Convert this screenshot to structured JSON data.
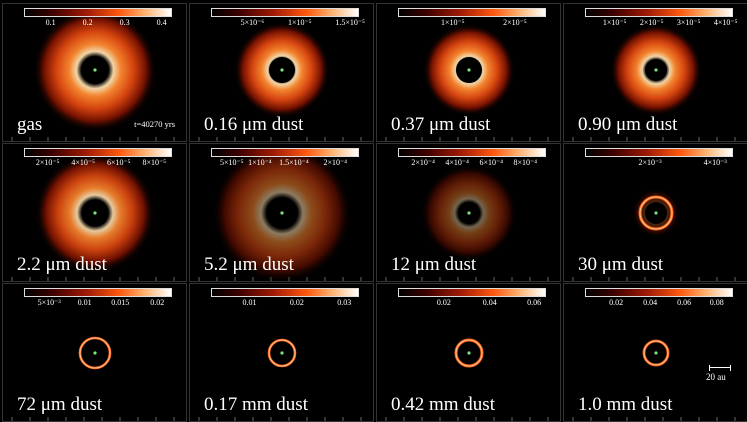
{
  "timestamp": "t=40270 yrs",
  "scale_label": "20 au",
  "panels": [
    {
      "label": "gas",
      "ticks": [
        "0.1",
        "0.2",
        "0.3",
        "0.4"
      ]
    },
    {
      "label": "0.16 μm dust",
      "ticks": [
        "5×10⁻⁶",
        "1×10⁻⁵",
        "1.5×10⁻⁵"
      ]
    },
    {
      "label": "0.37 μm dust",
      "ticks": [
        "1×10⁻⁵",
        "2×10⁻⁵"
      ]
    },
    {
      "label": "0.90 μm dust",
      "ticks": [
        "1×10⁻⁵",
        "2×10⁻⁵",
        "3×10⁻⁵",
        "4×10⁻⁵"
      ]
    },
    {
      "label": "2.2 μm dust",
      "ticks": [
        "2×10⁻⁵",
        "4×10⁻⁵",
        "6×10⁻⁵",
        "8×10⁻⁵"
      ]
    },
    {
      "label": "5.2 μm dust",
      "ticks": [
        "5×10⁻⁵",
        "1×10⁻⁴",
        "1.5×10⁻⁴",
        "2×10⁻⁴"
      ]
    },
    {
      "label": "12 μm dust",
      "ticks": [
        "2×10⁻⁴",
        "4×10⁻⁴",
        "6×10⁻⁴",
        "8×10⁻⁴"
      ]
    },
    {
      "label": "30 μm dust",
      "ticks": [
        "2×10⁻³",
        "4×10⁻³"
      ]
    },
    {
      "label": "72 μm dust",
      "ticks": [
        "5×10⁻³",
        "0.01",
        "0.015",
        "0.02"
      ]
    },
    {
      "label": "0.17 mm dust",
      "ticks": [
        "0.01",
        "0.02",
        "0.03"
      ]
    },
    {
      "label": "0.42 mm dust",
      "ticks": [
        "0.02",
        "0.04",
        "0.06"
      ]
    },
    {
      "label": "1.0 mm dust",
      "ticks": [
        "0.02",
        "0.04",
        "0.06",
        "0.08"
      ]
    }
  ]
}
